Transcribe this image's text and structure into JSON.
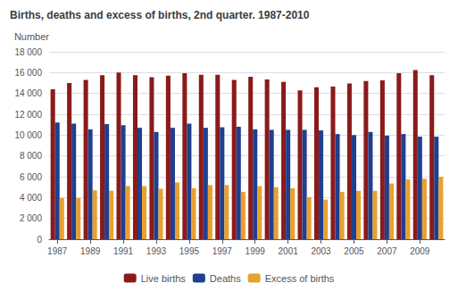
{
  "chart_data": {
    "type": "bar",
    "title": "Births, deaths and excess of births, 2nd quarter. 1987-2010",
    "ylabel": "Number",
    "categories": [
      "1987",
      null,
      "1989",
      null,
      "1991",
      null,
      "1993",
      null,
      "1995",
      null,
      "1997",
      null,
      "1999",
      null,
      "2001",
      null,
      "2003",
      null,
      "2005",
      null,
      "2007",
      null,
      "2009",
      null
    ],
    "series": [
      {
        "name": "Live births",
        "color": "#8B1A1A",
        "values": [
          14400,
          15000,
          15300,
          15750,
          16000,
          15750,
          15550,
          15700,
          15950,
          15800,
          15800,
          15300,
          15600,
          15350,
          15100,
          14300,
          14600,
          14650,
          14950,
          15200,
          15250,
          15950,
          16250,
          15750
        ]
      },
      {
        "name": "Deaths",
        "color": "#1F3F8F",
        "values": [
          11200,
          11100,
          10550,
          11050,
          10950,
          10700,
          10300,
          10700,
          11100,
          10700,
          10750,
          10800,
          10550,
          10500,
          10500,
          10500,
          10450,
          10100,
          10000,
          10300,
          9950,
          10100,
          9850,
          9850
        ]
      },
      {
        "name": "Excess of births",
        "color": "#E8A030",
        "values": [
          3950,
          3950,
          4700,
          4650,
          5100,
          5100,
          4850,
          5450,
          4900,
          5200,
          5200,
          4550,
          5100,
          5000,
          4900,
          4050,
          3800,
          4550,
          4650,
          4650,
          5350,
          5750,
          5800,
          6000
        ]
      }
    ],
    "ylim": [
      0,
      18000
    ],
    "yticks": [
      0,
      {
        "value": 2000,
        "label": "2 000"
      },
      {
        "value": 4000,
        "label": "4 000"
      },
      {
        "value": 6000,
        "label": "6 000"
      },
      {
        "value": 8000,
        "label": "8 000"
      },
      {
        "value": 10000,
        "label": "10 000"
      },
      {
        "value": 12000,
        "label": "12 000"
      },
      {
        "value": 14000,
        "label": "14 000"
      },
      {
        "value": 16000,
        "label": "16 000"
      },
      {
        "value": 18000,
        "label": "18 000"
      }
    ],
    "grid": true,
    "legend": "bottom"
  }
}
